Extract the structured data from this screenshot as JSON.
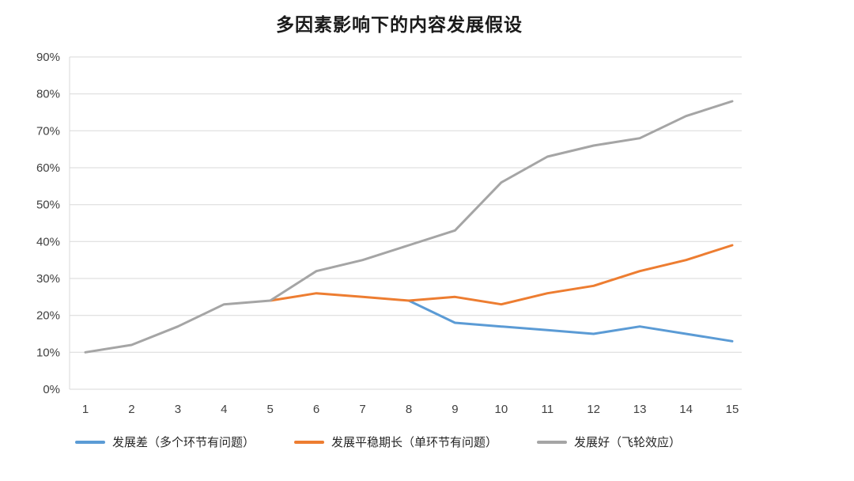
{
  "chart_data": {
    "type": "line",
    "title": "多因素影响下的内容发展假设",
    "xlabel": "",
    "ylabel": "",
    "categories": [
      "1",
      "2",
      "3",
      "4",
      "5",
      "6",
      "7",
      "8",
      "9",
      "10",
      "11",
      "12",
      "13",
      "14",
      "15"
    ],
    "ylim": [
      0,
      90
    ],
    "ytick_values": [
      0,
      10,
      20,
      30,
      40,
      50,
      60,
      70,
      80,
      90
    ],
    "ytick_labels": [
      "0%",
      "10%",
      "20%",
      "30%",
      "40%",
      "50%",
      "60%",
      "70%",
      "80%",
      "90%"
    ],
    "grid": true,
    "legend_position": "bottom",
    "series": [
      {
        "name": "发展差（多个环节有问题）",
        "color": "#5B9BD5",
        "values": [
          null,
          null,
          null,
          null,
          null,
          null,
          null,
          24,
          18,
          17,
          16,
          15,
          17,
          15,
          13
        ]
      },
      {
        "name": "发展平稳期长（单环节有问题）",
        "color": "#ED7D31",
        "values": [
          null,
          null,
          null,
          null,
          24,
          26,
          25,
          24,
          25,
          23,
          26,
          28,
          32,
          35,
          39
        ]
      },
      {
        "name": "发展好（飞轮效应）",
        "color": "#A5A5A5",
        "values": [
          10,
          12,
          17,
          23,
          24,
          32,
          35,
          39,
          43,
          56,
          63,
          66,
          68,
          74,
          78
        ]
      }
    ]
  },
  "chart_style": {
    "grid_color": "#D9D9D9",
    "axis_color": "#D9D9D9",
    "tick_color": "#404040",
    "line_width": 3
  }
}
